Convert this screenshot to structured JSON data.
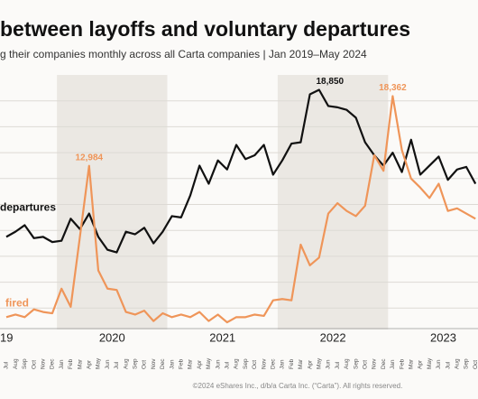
{
  "chart_data": {
    "type": "line",
    "title": "between layoffs and voluntary departures",
    "subtitle": "g their companies monthly across all Carta companies  |  Jan 2019–May 2024",
    "footer": "©2024 eShares Inc., d/b/a Carta Inc. (“Carta”). All rights reserved.",
    "x_groups": [
      "19",
      "2020",
      "2021",
      "2022",
      "2023"
    ],
    "categories": [
      "Jul",
      "Aug",
      "Sep",
      "Oct",
      "Nov",
      "Dec",
      "Jan",
      "Feb",
      "Mar",
      "Apr",
      "May",
      "Jun",
      "Jul",
      "Aug",
      "Sep",
      "Oct",
      "Nov",
      "Dec",
      "Jan",
      "Feb",
      "Mar",
      "Apr",
      "May",
      "Jun",
      "Jul",
      "Aug",
      "Sep",
      "Oct",
      "Nov",
      "Dec",
      "Jan",
      "Feb",
      "Mar",
      "Apr",
      "May",
      "Jun",
      "Jul",
      "Aug",
      "Sep",
      "Oct",
      "Nov",
      "Dec",
      "Jan",
      "Feb",
      "Mar",
      "Apr",
      "May",
      "Jun",
      "Jul",
      "Aug",
      "Sep",
      "Oct"
    ],
    "series": [
      {
        "name": "departures",
        "color": "#111111",
        "values": [
          7500,
          7900,
          8400,
          7400,
          7500,
          7100,
          7200,
          8900,
          8100,
          9300,
          7500,
          6500,
          6300,
          7900,
          7700,
          8200,
          7000,
          7900,
          9100,
          9000,
          10700,
          13000,
          11600,
          13400,
          12700,
          14600,
          13500,
          13800,
          14600,
          12300,
          13400,
          14700,
          14800,
          18500,
          18850,
          17600,
          17500,
          17300,
          16700,
          14800,
          13800,
          13000,
          14000,
          12500,
          15000,
          12300,
          13000,
          13700,
          11900,
          12700,
          12900,
          11600
        ],
        "value_labels": [
          null,
          null,
          null,
          null,
          null,
          null,
          null,
          null,
          null,
          null,
          null,
          null,
          null,
          null,
          null,
          null,
          null,
          null,
          null,
          null,
          null,
          null,
          null,
          null,
          null,
          null,
          null,
          null,
          null,
          null,
          null,
          null,
          null,
          null,
          "18,850",
          null,
          null,
          null,
          null,
          null,
          null,
          null,
          null,
          null,
          null,
          null,
          null,
          null,
          null,
          null,
          null,
          null
        ]
      },
      {
        "name": "fired",
        "color": "#ef9559",
        "values": [
          1300,
          1500,
          1300,
          1900,
          1700,
          1600,
          3500,
          2100,
          7500,
          12984,
          4900,
          3500,
          3400,
          1700,
          1500,
          1800,
          1000,
          1600,
          1300,
          1500,
          1300,
          1700,
          1000,
          1500,
          900,
          1300,
          1300,
          1500,
          1400,
          2600,
          2700,
          2600,
          6900,
          5300,
          5900,
          9300,
          10100,
          9500,
          9100,
          9900,
          13800,
          12600,
          18362,
          14200,
          12000,
          11300,
          10500,
          11600,
          9500,
          9700,
          9300,
          8900
        ],
        "value_labels": [
          null,
          null,
          null,
          null,
          null,
          null,
          null,
          null,
          null,
          "12,984",
          null,
          null,
          null,
          null,
          null,
          null,
          null,
          null,
          null,
          null,
          null,
          null,
          null,
          null,
          null,
          null,
          null,
          null,
          null,
          null,
          null,
          null,
          null,
          null,
          null,
          null,
          null,
          null,
          null,
          null,
          null,
          null,
          "18,362",
          null,
          null,
          null,
          null,
          null,
          null,
          null,
          null,
          null
        ]
      }
    ],
    "ylim": [
      0,
      20000
    ],
    "yticks": [
      2000,
      4000,
      6000,
      8000,
      10000,
      12000,
      14000,
      16000,
      18000
    ],
    "grid": true
  }
}
